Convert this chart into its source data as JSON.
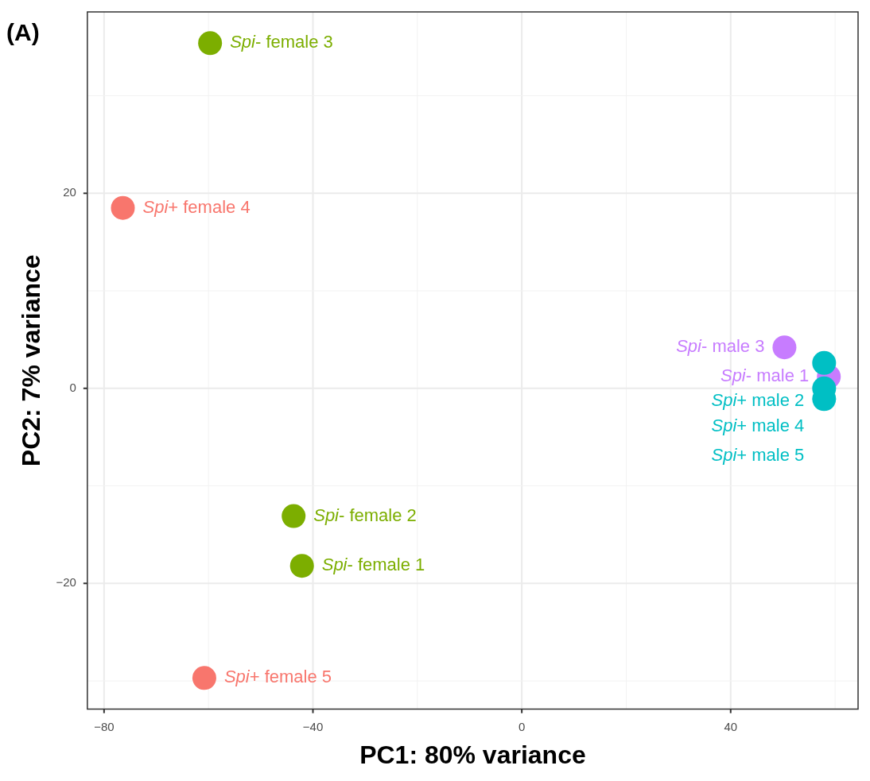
{
  "chart_data": {
    "type": "scatter",
    "title": "(A)",
    "xlabel": "PC1: 80% variance",
    "ylabel": "PC2: 7% variance",
    "xlim": [
      -83.2,
      64.4
    ],
    "ylim": [
      -32.9,
      38.6
    ],
    "xticks": [
      -80,
      -40,
      0,
      40
    ],
    "yticks": [
      -20,
      0,
      20
    ],
    "grid": true,
    "marker": "circle",
    "series": [
      {
        "color": "#f8766d",
        "x": [
          -76.4,
          -60.8
        ],
        "values": [
          18.5,
          -29.7
        ],
        "value_labels": [
          "Spi+ female 4",
          "Spi+ female 5"
        ]
      },
      {
        "color": "#7cae00",
        "x": [
          -59.7,
          -43.7,
          -42.1
        ],
        "values": [
          35.4,
          -13.1,
          -18.2
        ],
        "value_labels": [
          "Spi- female 3",
          "Spi- female 2",
          "Spi- female 1"
        ]
      },
      {
        "color": "#00bfc4",
        "x": [
          57.9,
          57.9,
          57.9
        ],
        "values": [
          2.6,
          0,
          -1.1
        ],
        "value_labels": [
          "Spi+ male 2",
          "Spi+ male 4",
          "Spi+ male 5"
        ]
      },
      {
        "color": "#c77cff",
        "x": [
          50.3,
          58.8
        ],
        "values": [
          4.2,
          1.2
        ],
        "value_labels": [
          "Spi- male 3",
          "Spi- male 1"
        ]
      }
    ]
  }
}
